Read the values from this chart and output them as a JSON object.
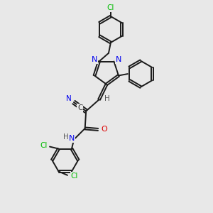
{
  "bg_color": "#e8e8e8",
  "bond_color": "#1a1a1a",
  "bond_width": 1.4,
  "N_color": "#0000ee",
  "O_color": "#dd0000",
  "Cl_color": "#00bb00",
  "H_color": "#555555",
  "C_color": "#333333",
  "figsize": [
    3.0,
    3.0
  ],
  "dpi": 100,
  "xlim": [
    0,
    10
  ],
  "ylim": [
    0,
    10
  ]
}
